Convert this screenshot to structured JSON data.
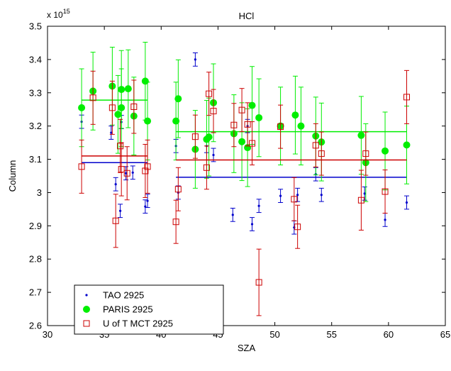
{
  "chart_data": {
    "type": "scatter",
    "title": "HCl",
    "xlabel": "SZA",
    "ylabel": "Column",
    "y_multiplier_label": "x 10",
    "y_multiplier_exponent": "15",
    "xlim": [
      30,
      65
    ],
    "ylim": [
      2.6,
      3.5
    ],
    "xticks": [
      30,
      35,
      40,
      45,
      50,
      55,
      60,
      65
    ],
    "yticks": [
      2.6,
      2.7,
      2.8,
      2.9,
      3.0,
      3.1,
      3.2,
      3.3,
      3.4,
      3.5
    ],
    "ytick_labels": [
      "2.6",
      "2.7",
      "2.8",
      "2.9",
      "3",
      "3.1",
      "3.2",
      "3.3",
      "3.4",
      "3.5"
    ],
    "grid": false,
    "legend_position": "bottom-left",
    "series": [
      {
        "name": "TAO 2925",
        "color": "#0000cc",
        "marker": "dot",
        "points": [
          {
            "x": 33.0,
            "y": 3.213,
            "err": 0.02
          },
          {
            "x": 35.6,
            "y": 3.18,
            "err": 0.02
          },
          {
            "x": 36.0,
            "y": 3.025,
            "err": 0.02
          },
          {
            "x": 36.4,
            "y": 2.945,
            "err": 0.02
          },
          {
            "x": 36.5,
            "y": 3.212,
            "err": 0.02
          },
          {
            "x": 36.9,
            "y": 3.058,
            "err": 0.02
          },
          {
            "x": 37.5,
            "y": 3.06,
            "err": 0.02
          },
          {
            "x": 38.6,
            "y": 2.958,
            "err": 0.02
          },
          {
            "x": 38.8,
            "y": 2.975,
            "err": 0.02
          },
          {
            "x": 41.3,
            "y": 3.14,
            "err": 0.02
          },
          {
            "x": 41.5,
            "y": 3.0,
            "err": 0.02
          },
          {
            "x": 43.0,
            "y": 3.4,
            "err": 0.02
          },
          {
            "x": 44.0,
            "y": 3.14,
            "err": 0.02
          },
          {
            "x": 44.6,
            "y": 3.113,
            "err": 0.02
          },
          {
            "x": 46.3,
            "y": 2.933,
            "err": 0.02
          },
          {
            "x": 47.6,
            "y": 3.2,
            "err": 0.02
          },
          {
            "x": 48.0,
            "y": 2.905,
            "err": 0.02
          },
          {
            "x": 48.6,
            "y": 2.96,
            "err": 0.02
          },
          {
            "x": 50.5,
            "y": 2.99,
            "err": 0.02
          },
          {
            "x": 51.7,
            "y": 2.895,
            "err": 0.02
          },
          {
            "x": 52.0,
            "y": 2.993,
            "err": 0.02
          },
          {
            "x": 53.6,
            "y": 3.055,
            "err": 0.02
          },
          {
            "x": 54.1,
            "y": 2.993,
            "err": 0.02
          },
          {
            "x": 57.9,
            "y": 2.997,
            "err": 0.02
          },
          {
            "x": 59.7,
            "y": 2.918,
            "err": 0.02
          },
          {
            "x": 61.6,
            "y": 2.97,
            "err": 0.02
          }
        ],
        "mean_line": {
          "x": [
            33.0,
            38.8
          ],
          "y": 3.09
        },
        "mean_line_2": {
          "x": [
            41.3,
            61.6
          ],
          "y": 3.046
        }
      },
      {
        "name": "PARIS 2925",
        "color": "#00ee00",
        "marker": "circle-filled",
        "points": [
          {
            "x": 33.0,
            "y": 3.255,
            "err": 0.117
          },
          {
            "x": 34.0,
            "y": 3.305,
            "err": 0.117
          },
          {
            "x": 35.7,
            "y": 3.32,
            "err": 0.117
          },
          {
            "x": 36.2,
            "y": 3.235,
            "err": 0.117
          },
          {
            "x": 36.5,
            "y": 3.31,
            "err": 0.117
          },
          {
            "x": 36.5,
            "y": 3.255,
            "err": 0.117
          },
          {
            "x": 37.1,
            "y": 3.312,
            "err": 0.117
          },
          {
            "x": 37.6,
            "y": 3.23,
            "err": 0.117
          },
          {
            "x": 38.6,
            "y": 3.335,
            "err": 0.117
          },
          {
            "x": 38.8,
            "y": 3.215,
            "err": 0.117
          },
          {
            "x": 41.3,
            "y": 3.215,
            "err": 0.117
          },
          {
            "x": 41.5,
            "y": 3.282,
            "err": 0.117
          },
          {
            "x": 43.0,
            "y": 3.13,
            "err": 0.117
          },
          {
            "x": 44.0,
            "y": 3.16,
            "err": 0.117
          },
          {
            "x": 44.2,
            "y": 3.167,
            "err": 0.117
          },
          {
            "x": 44.6,
            "y": 3.27,
            "err": 0.117
          },
          {
            "x": 46.4,
            "y": 3.177,
            "err": 0.117
          },
          {
            "x": 47.1,
            "y": 3.153,
            "err": 0.117
          },
          {
            "x": 47.6,
            "y": 3.135,
            "err": 0.117
          },
          {
            "x": 48.0,
            "y": 3.262,
            "err": 0.117
          },
          {
            "x": 48.6,
            "y": 3.225,
            "err": 0.117
          },
          {
            "x": 50.5,
            "y": 3.2,
            "err": 0.117
          },
          {
            "x": 51.8,
            "y": 3.233,
            "err": 0.117
          },
          {
            "x": 52.3,
            "y": 3.2,
            "err": 0.117
          },
          {
            "x": 53.6,
            "y": 3.17,
            "err": 0.117
          },
          {
            "x": 54.1,
            "y": 3.152,
            "err": 0.117
          },
          {
            "x": 57.6,
            "y": 3.172,
            "err": 0.117
          },
          {
            "x": 58.0,
            "y": 3.09,
            "err": 0.117
          },
          {
            "x": 59.7,
            "y": 3.125,
            "err": 0.117
          },
          {
            "x": 61.6,
            "y": 3.143,
            "err": 0.117
          }
        ],
        "mean_line": {
          "x": [
            33.0,
            38.8
          ],
          "y": 3.278
        },
        "mean_line_2": {
          "x": [
            41.3,
            61.6
          ],
          "y": 3.183
        }
      },
      {
        "name": "U of T MCT 2925",
        "color": "#cc0000",
        "marker": "square-open",
        "points": [
          {
            "x": 33.0,
            "y": 3.078,
            "err": 0.08
          },
          {
            "x": 34.0,
            "y": 3.285,
            "err": 0.08
          },
          {
            "x": 35.7,
            "y": 3.255,
            "err": 0.08
          },
          {
            "x": 36.0,
            "y": 2.915,
            "err": 0.08
          },
          {
            "x": 36.4,
            "y": 3.14,
            "err": 0.08
          },
          {
            "x": 36.5,
            "y": 3.07,
            "err": 0.08
          },
          {
            "x": 37.0,
            "y": 3.058,
            "err": 0.08
          },
          {
            "x": 37.6,
            "y": 3.258,
            "err": 0.08
          },
          {
            "x": 38.6,
            "y": 3.065,
            "err": 0.08
          },
          {
            "x": 38.8,
            "y": 3.078,
            "err": 0.08
          },
          {
            "x": 41.3,
            "y": 2.912,
            "err": 0.065
          },
          {
            "x": 41.5,
            "y": 3.01,
            "err": 0.065
          },
          {
            "x": 43.0,
            "y": 3.168,
            "err": 0.065
          },
          {
            "x": 44.0,
            "y": 3.075,
            "err": 0.065
          },
          {
            "x": 44.2,
            "y": 3.297,
            "err": 0.065
          },
          {
            "x": 44.6,
            "y": 3.245,
            "err": 0.065
          },
          {
            "x": 46.4,
            "y": 3.203,
            "err": 0.065
          },
          {
            "x": 47.1,
            "y": 3.248,
            "err": 0.065
          },
          {
            "x": 47.6,
            "y": 3.205,
            "err": 0.065
          },
          {
            "x": 48.0,
            "y": 3.148,
            "err": 0.065
          },
          {
            "x": 48.6,
            "y": 2.73,
            "err": 0.1
          },
          {
            "x": 50.5,
            "y": 3.198,
            "err": 0.065
          },
          {
            "x": 51.7,
            "y": 2.98,
            "err": 0.065
          },
          {
            "x": 52.0,
            "y": 2.897,
            "err": 0.065
          },
          {
            "x": 53.6,
            "y": 3.142,
            "err": 0.065
          },
          {
            "x": 54.1,
            "y": 3.117,
            "err": 0.065
          },
          {
            "x": 57.6,
            "y": 2.977,
            "err": 0.09
          },
          {
            "x": 58.0,
            "y": 3.117,
            "err": 0.065
          },
          {
            "x": 59.7,
            "y": 3.003,
            "err": 0.065
          },
          {
            "x": 61.6,
            "y": 3.287,
            "err": 0.08
          }
        ],
        "mean_line": {
          "x": [
            33.0,
            38.8
          ],
          "y": 3.11
        },
        "mean_line_2": {
          "x": [
            41.3,
            61.6
          ],
          "y": 3.098
        }
      }
    ]
  }
}
